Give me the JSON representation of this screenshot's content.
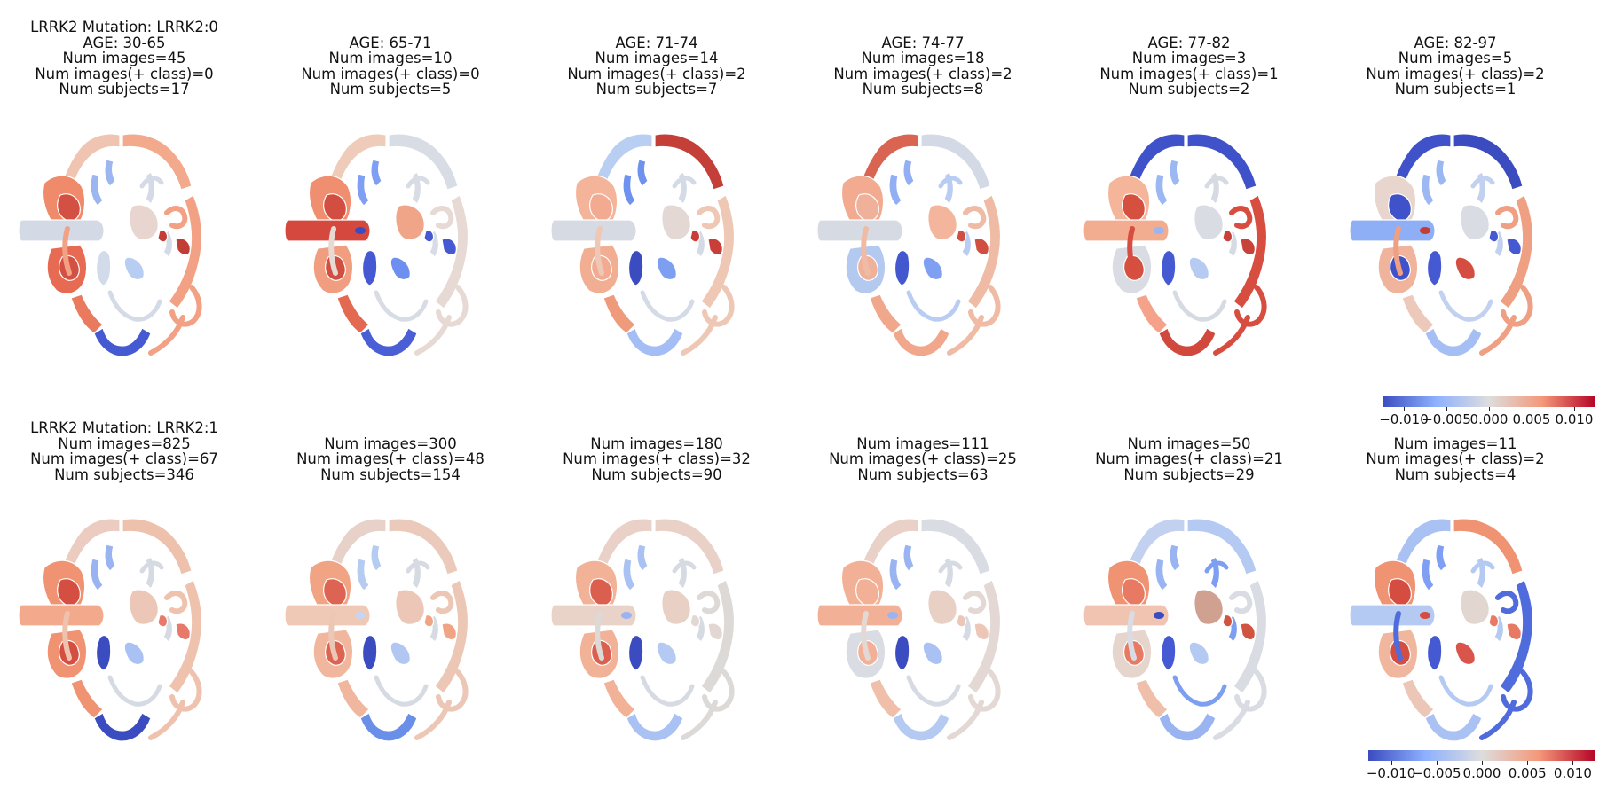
{
  "rows": [
    {
      "panels": [
        {
          "lines": [
            "LRRK2 Mutation: LRRK2:0",
            "AGE: 30-65",
            "Num images=45",
            "Num images(+ class)=0",
            "Num subjects=17"
          ],
          "fills": {
            "ctx_l": "#efc4b0",
            "ctx_r": "#f3a184",
            "ins_l": "#9cb6ef",
            "ins_r": "#d4dbe6",
            "pft": "#d3d9e5",
            "put_l": "#ef8a6a",
            "put_r": "#e9d5cf",
            "caud": "#d35143",
            "thal": "#e66b52",
            "hc": "#ea7a5e",
            "occ": "#4459d2",
            "par": "#f2a98c",
            "vl": "#d2dbe9",
            "vr": "#b8cdf2",
            "sp": "#c33d37",
            "dot": "#d3d9e5"
          }
        },
        {
          "lines": [
            "AGE: 65-71",
            "Num images=10",
            "Num images(+ class)=0",
            "Num subjects=5"
          ],
          "fills": {
            "ctx_l": "#efcbba",
            "ctx_r": "#e7d9d3",
            "ins_l": "#7e9ff4",
            "ins_r": "#d8dce4",
            "pft": "#d5483d",
            "put_l": "#ef8f70",
            "put_r": "#f0a488",
            "caud": "#d24e41",
            "thal": "#f09e7f",
            "hc": "#e36a51",
            "occ": "#4a5fd6",
            "par": "#d8dce4",
            "vl": "#4459d2",
            "vr": "#6d8ff0",
            "sp": "#4459d2",
            "dot": "#3b4cc0"
          }
        },
        {
          "lines": [
            "AGE: 71-74",
            "Num images=14",
            "Num images(+ class)=2",
            "Num subjects=7"
          ],
          "fills": {
            "ctx_l": "#b8cff3",
            "ctx_r": "#efc7b5",
            "ins_l": "#6f92ee",
            "ins_r": "#d4dbe6",
            "pft": "#d6dae2",
            "put_l": "#f4b499",
            "put_r": "#e3d8d3",
            "caud": "#f2ab90",
            "thal": "#f2ae92",
            "hc": "#ee9a7b",
            "occ": "#a4bef5",
            "par": "#c43f37",
            "vl": "#3b4cc0",
            "vr": "#7d9ff2",
            "sp": "#c93f38",
            "dot": "#d6dae2"
          }
        },
        {
          "lines": [
            "AGE: 74-77",
            "Num images=18",
            "Num images(+ class)=2",
            "Num subjects=8"
          ],
          "fills": {
            "ctx_l": "#d86451",
            "ctx_r": "#efbba5",
            "ins_l": "#92aef4",
            "ins_r": "#b9cdf3",
            "pft": "#d6dae2",
            "put_l": "#f2ab90",
            "put_r": "#f3b69c",
            "caud": "#f0b19a",
            "thal": "#b4c9f0",
            "hc": "#f1a78b",
            "occ": "#f1a78b",
            "par": "#d3d9e5",
            "vl": "#4357cf",
            "vr": "#7fa0f2",
            "sp": "#d04f40",
            "dot": "#d6dae2"
          }
        },
        {
          "lines": [
            "AGE: 77-82",
            "Num images=3",
            "Num images(+ class)=1",
            "Num subjects=2"
          ],
          "fills": {
            "ctx_l": "#3f52c9",
            "ctx_r": "#d74e41",
            "ins_l": "#9cb8f2",
            "ins_r": "#d6dae2",
            "pft": "#f2ad91",
            "put_l": "#f4b59b",
            "put_r": "#d9dce3",
            "caud": "#d6503f",
            "thal": "#d9dce3",
            "hc": "#f4a38a",
            "occ": "#d1493d",
            "par": "#3f52c9",
            "vl": "#4459d2",
            "vr": "#b6cbf2",
            "sp": "#c8423a",
            "dot": "#9ab4f4"
          }
        },
        {
          "lines": [
            "AGE: 82-97",
            "Num images=5",
            "Num images(+ class)=2",
            "Num subjects=1"
          ],
          "fills": {
            "ctx_l": "#3f52c9",
            "ctx_r": "#ef9f82",
            "ins_l": "#9cb8f2",
            "ins_r": "#c2d1ef",
            "pft": "#8eaef5",
            "put_l": "#e8d5ce",
            "put_r": "#d9dce3",
            "caud": "#3f52c9",
            "thal": "#f0b39b",
            "hc": "#ecc9bb",
            "occ": "#a5bff4",
            "par": "#3b4cc0",
            "vl": "#4459d2",
            "vr": "#d54d41",
            "sp": "#4459d2",
            "dot": "#c33d37"
          }
        }
      ]
    },
    {
      "panels": [
        {
          "lines": [
            "LRRK2 Mutation: LRRK2:1",
            "Num images=825",
            "Num images(+ class)=67",
            "Num subjects=346"
          ],
          "fills": {
            "ctx_l": "#eccbc0",
            "ctx_r": "#efc2ae",
            "ins_l": "#9ab4f2",
            "ins_r": "#d6dae3",
            "pft": "#f2a98c",
            "put_l": "#ef9373",
            "put_r": "#ecc6b6",
            "caud": "#d44e41",
            "thal": "#ef9373",
            "hc": "#ef9373",
            "occ": "#3b4cc0",
            "par": "#eec1ad",
            "vl": "#3b4cc0",
            "vr": "#a9c2f3",
            "sp": "#e7786a",
            "dot": "#f2a98c"
          }
        },
        {
          "lines": [
            "Num images=300",
            "Num images(+ class)=48",
            "Num subjects=154"
          ],
          "fills": {
            "ctx_l": "#e7d1c8",
            "ctx_r": "#ecc7b6",
            "ins_l": "#b6cbf2",
            "ins_r": "#d6dae3",
            "pft": "#f0c9b6",
            "put_l": "#f1a484",
            "put_r": "#ecc6b6",
            "caud": "#dd6452",
            "thal": "#f0b79e",
            "hc": "#f0b79e",
            "occ": "#6a8fe9",
            "par": "#eccabb",
            "vl": "#3b4cc0",
            "vr": "#b1c7f2",
            "sp": "#f1a484",
            "dot": "#c7d5f0"
          }
        },
        {
          "lines": [
            "Num images=180",
            "Num images(+ class)=32",
            "Num subjects=90"
          ],
          "fills": {
            "ctx_l": "#e9d1c7",
            "ctx_r": "#dcd9d7",
            "ins_l": "#a9c2f3",
            "ins_r": "#d6dae3",
            "pft": "#e9d3c8",
            "put_l": "#f1b298",
            "put_r": "#e8d0c5",
            "caud": "#db5f4e",
            "thal": "#f1b298",
            "hc": "#f1b298",
            "occ": "#a9c2f3",
            "par": "#e9d1c7",
            "vl": "#3b4cc0",
            "vr": "#b5caf2",
            "sp": "#e2d7d2",
            "dot": "#9ab4f2"
          }
        },
        {
          "lines": [
            "Num images=111",
            "Num images(+ class)=25",
            "Num subjects=63"
          ],
          "fills": {
            "ctx_l": "#e9d1c7",
            "ctx_r": "#e3d8d3",
            "ins_l": "#9ab4f2",
            "ins_r": "#d6dae3",
            "pft": "#f2b196",
            "put_l": "#f2b196",
            "put_r": "#e8d0c5",
            "caud": "#f2b196",
            "thal": "#d9dce3",
            "hc": "#efbfa9",
            "occ": "#b5caf2",
            "par": "#d9dce3",
            "vl": "#3b4cc0",
            "vr": "#a9c2f3",
            "sp": "#ecc6b6",
            "dot": "#9ab4f2"
          }
        },
        {
          "lines": [
            "Num images=50",
            "Num images(+ class)=21",
            "Num subjects=29"
          ],
          "fills": {
            "ctx_l": "#c2d1ef",
            "ctx_r": "#d9dce3",
            "ins_l": "#9ab4f2",
            "ins_r": "#7d9ff2",
            "pft": "#f0c4b0",
            "put_l": "#ef9373",
            "put_r": "#d0a090",
            "caud": "#e87a64",
            "thal": "#e6d5cd",
            "hc": "#efbfa9",
            "occ": "#9ab4f2",
            "par": "#b5caf2",
            "vl": "#4459d2",
            "vr": "#b5caf2",
            "sp": "#d05541",
            "dot": "#3b4cc0"
          }
        },
        {
          "lines": [
            "Num images=11",
            "Num images(+ class)=2",
            "Num subjects=4"
          ],
          "fills": {
            "ctx_l": "#a9c2f3",
            "ctx_r": "#4f6bdc",
            "ins_l": "#7e9ff4",
            "ins_r": "#b5caf2",
            "pft": "#b5caf2",
            "put_l": "#ef9373",
            "put_r": "#e2d6d1",
            "caud": "#d54d41",
            "thal": "#f0b79e",
            "hc": "#ecc6b6",
            "occ": "#a9c2f3",
            "par": "#ef9373",
            "vl": "#4459d2",
            "vr": "#d9554b",
            "sp": "#e87a64",
            "dot": "#d54d41"
          }
        }
      ]
    }
  ],
  "colorbars": [
    {
      "ticks": [
        "−0.010",
        "−0.005",
        "0.000",
        "0.005",
        "0.010"
      ],
      "range": [
        -0.0125,
        0.0125
      ]
    },
    {
      "ticks": [
        "−0.010",
        "−0.005",
        "0.000",
        "0.005",
        "0.010"
      ],
      "range": [
        -0.0125,
        0.0125
      ]
    }
  ],
  "colormap": {
    "low": "#3b4cc0",
    "lowmid": "#8db0fe",
    "mid": "#dddddd",
    "highmid": "#f4987a",
    "high": "#b40426"
  }
}
